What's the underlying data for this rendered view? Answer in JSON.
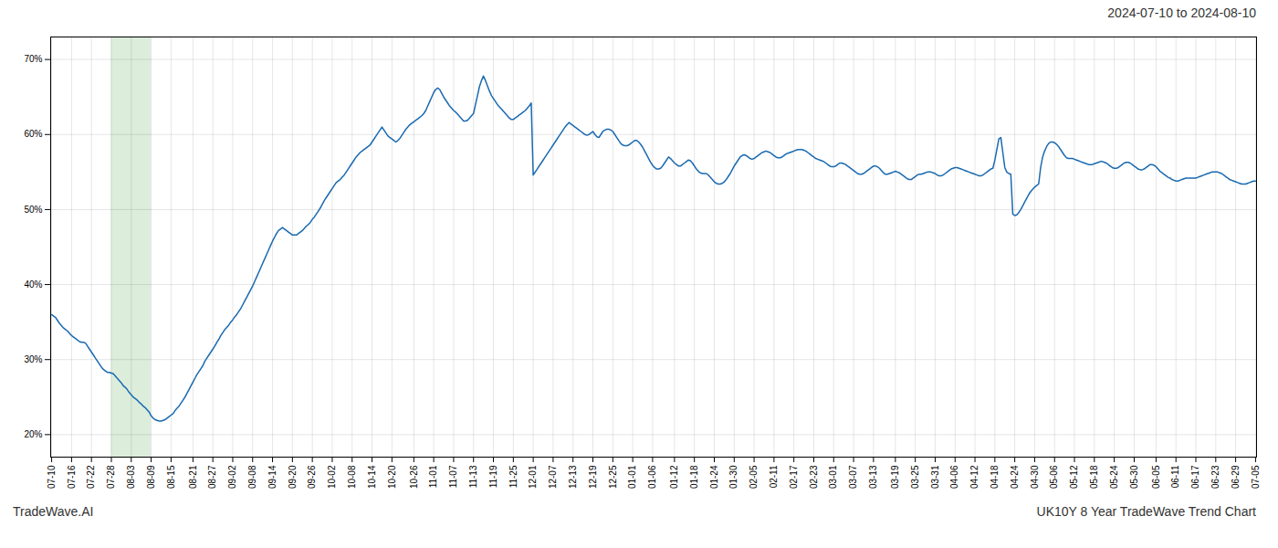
{
  "chart_data": {
    "type": "line",
    "title": "2024-07-10 to 2024-08-10",
    "annotations": [
      "TradeWave.AI",
      "UK10Y 8 Year TradeWave Trend Chart"
    ],
    "color": "#1a6ab0",
    "grid": true,
    "ylim": [
      0.17,
      0.73
    ],
    "yticks": [
      {
        "value": 0.2,
        "label": "20%"
      },
      {
        "value": 0.3,
        "label": "30%"
      },
      {
        "value": 0.4,
        "label": "40%"
      },
      {
        "value": 0.5,
        "label": "50%"
      },
      {
        "value": 0.6,
        "label": "60%"
      },
      {
        "value": 0.7,
        "label": "70%"
      }
    ],
    "shaded_region": {
      "from": "07-28",
      "to": "08-09",
      "color": "#d6ead6"
    },
    "categories": [
      "07-10",
      null,
      null,
      null,
      null,
      null,
      null,
      null,
      null,
      null,
      "07-16",
      null,
      null,
      null,
      null,
      null,
      null,
      null,
      null,
      null,
      "07-22",
      null,
      null,
      null,
      null,
      null,
      null,
      null,
      null,
      null,
      "07-28",
      null,
      null,
      null,
      null,
      null,
      null,
      null,
      null,
      null,
      "08-03",
      null,
      null,
      null,
      null,
      null,
      null,
      null,
      null,
      null,
      "08-09",
      null,
      null,
      null,
      null,
      null,
      null,
      null,
      null,
      null,
      "08-15",
      null,
      null,
      null,
      null,
      null,
      null,
      null,
      null,
      null,
      null,
      "08-21",
      null,
      null,
      null,
      null,
      null,
      null,
      null,
      null,
      null,
      "08-27",
      null,
      null,
      null,
      null,
      null,
      null,
      null,
      null,
      null,
      "09-02",
      null,
      null,
      null,
      null,
      null,
      null,
      null,
      null,
      null,
      "09-08",
      null,
      null,
      null,
      null,
      null,
      null,
      null,
      null,
      null,
      "09-14",
      null,
      null,
      null,
      null,
      null,
      null,
      null,
      null,
      null,
      "09-20",
      null,
      null,
      null,
      null,
      null,
      null,
      null,
      null,
      null,
      "09-26",
      null,
      null,
      null,
      null,
      null,
      null,
      null,
      null,
      null,
      "10-02",
      null,
      null,
      null,
      null,
      null,
      null,
      null,
      null,
      null,
      "10-08",
      null,
      null,
      null,
      null,
      null,
      null,
      null,
      null,
      null,
      "10-14",
      null,
      null,
      null,
      null,
      null,
      null,
      null,
      null,
      null,
      "10-20",
      null,
      null,
      null,
      null,
      null,
      null,
      null,
      null,
      null,
      null,
      "10-26",
      null,
      null,
      null,
      null,
      null,
      null,
      null,
      null,
      null,
      "11-01",
      null,
      null,
      null,
      null,
      null,
      null,
      null,
      null,
      null,
      "11-07",
      null,
      null,
      null,
      null,
      null,
      null,
      null,
      null,
      null,
      "11-13",
      null,
      null,
      null,
      null,
      null,
      null,
      null,
      null,
      null,
      "11-19",
      null,
      null,
      null,
      null,
      null,
      null,
      null,
      null,
      null,
      "11-25",
      null,
      null,
      null,
      null,
      null,
      null,
      null,
      null,
      null,
      "12-01",
      null,
      null,
      null,
      null,
      null,
      null,
      null,
      null,
      null,
      "12-07",
      null,
      null,
      null,
      null,
      null,
      null,
      null,
      null,
      null,
      "12-13",
      null,
      null,
      null,
      null,
      null,
      null,
      null,
      null,
      null,
      "12-19",
      null,
      null,
      null,
      null,
      null,
      null,
      null,
      null,
      null,
      "12-25",
      null,
      null,
      null,
      null,
      null,
      null,
      null,
      null,
      null,
      "01-01",
      null,
      null,
      null,
      null,
      null,
      null,
      null,
      null,
      null,
      "01-06",
      null,
      null,
      null,
      null,
      null,
      null,
      null,
      null,
      null,
      null,
      "01-12",
      null,
      null,
      null,
      null,
      null,
      null,
      null,
      null,
      null,
      "01-18",
      null,
      null,
      null,
      null,
      null,
      null,
      null,
      null,
      null,
      "01-24",
      null,
      null,
      null,
      null,
      null,
      null,
      null,
      null,
      null,
      "01-30",
      null,
      null,
      null,
      null,
      null,
      null,
      null,
      null,
      null,
      "02-05",
      null,
      null,
      null,
      null,
      null,
      null,
      null,
      null,
      null,
      "02-11",
      null,
      null,
      null,
      null,
      null,
      null,
      null,
      null,
      null,
      "02-17",
      null,
      null,
      null,
      null,
      null,
      null,
      null,
      null,
      null,
      "02-23",
      null,
      null,
      null,
      null,
      null,
      null,
      null,
      null,
      null,
      "03-01",
      null,
      null,
      null,
      null,
      null,
      null,
      null,
      null,
      null,
      "03-07",
      null,
      null,
      null,
      null,
      null,
      null,
      null,
      null,
      null,
      "03-13",
      null,
      null,
      null,
      null,
      null,
      null,
      null,
      null,
      null,
      null,
      "03-19",
      null,
      null,
      null,
      null,
      null,
      null,
      null,
      null,
      null,
      "03-25",
      null,
      null,
      null,
      null,
      null,
      null,
      null,
      null,
      null,
      "03-31",
      null,
      null,
      null,
      null,
      null,
      null,
      null,
      null,
      null,
      "04-06",
      null,
      null,
      null,
      null,
      null,
      null,
      null,
      null,
      null,
      "04-12",
      null,
      null,
      null,
      null,
      null,
      null,
      null,
      null,
      null,
      "04-18",
      null,
      null,
      null,
      null,
      null,
      null,
      null,
      null,
      null,
      "04-24",
      null,
      null,
      null,
      null,
      null,
      null,
      null,
      null,
      null,
      "04-30",
      null,
      null,
      null,
      null,
      null,
      null,
      null,
      null,
      null,
      "05-06",
      null,
      null,
      null,
      null,
      null,
      null,
      null,
      null,
      null,
      "05-12",
      null,
      null,
      null,
      null,
      null,
      null,
      null,
      null,
      null,
      "05-18",
      null,
      null,
      null,
      null,
      null,
      null,
      null,
      null,
      null,
      "05-24",
      null,
      null,
      null,
      null,
      null,
      null,
      null,
      null,
      null,
      "05-30",
      null,
      null,
      null,
      null,
      null,
      null,
      null,
      null,
      null,
      null,
      "06-05",
      null,
      null,
      null,
      null,
      null,
      null,
      null,
      null,
      null,
      "06-11",
      null,
      null,
      null,
      null,
      null,
      null,
      null,
      null,
      null,
      "06-17",
      null,
      null,
      null,
      null,
      null,
      null,
      null,
      null,
      null,
      "06-23",
      null,
      null,
      null,
      null,
      null,
      null,
      null,
      null,
      null,
      "06-29",
      null,
      null,
      null,
      null,
      null,
      null,
      null,
      null,
      null,
      "07-05"
    ],
    "values": [
      0.36,
      0.358,
      0.356,
      0.352,
      0.348,
      0.345,
      0.342,
      0.34,
      0.338,
      0.335,
      0.332,
      0.33,
      0.328,
      0.326,
      0.324,
      0.323,
      0.323,
      0.322,
      0.318,
      0.314,
      0.31,
      0.306,
      0.302,
      0.298,
      0.294,
      0.29,
      0.287,
      0.285,
      0.283,
      0.283,
      0.282,
      0.281,
      0.278,
      0.275,
      0.272,
      0.269,
      0.265,
      0.263,
      0.26,
      0.256,
      0.253,
      0.25,
      0.248,
      0.246,
      0.243,
      0.241,
      0.238,
      0.236,
      0.233,
      0.23,
      0.225,
      0.222,
      0.22,
      0.219,
      0.218,
      0.218,
      0.219,
      0.22,
      0.222,
      0.224,
      0.226,
      0.228,
      0.232,
      0.235,
      0.238,
      0.242,
      0.246,
      0.25,
      0.255,
      0.26,
      0.265,
      0.27,
      0.275,
      0.28,
      0.284,
      0.288,
      0.292,
      0.298,
      0.302,
      0.306,
      0.31,
      0.314,
      0.318,
      0.323,
      0.327,
      0.332,
      0.336,
      0.34,
      0.343,
      0.346,
      0.35,
      0.353,
      0.357,
      0.36,
      0.364,
      0.368,
      0.373,
      0.378,
      0.383,
      0.388,
      0.393,
      0.398,
      0.404,
      0.41,
      0.416,
      0.422,
      0.428,
      0.434,
      0.44,
      0.446,
      0.452,
      0.458,
      0.463,
      0.468,
      0.472,
      0.474,
      0.476,
      0.474,
      0.472,
      0.47,
      0.468,
      0.466,
      0.466,
      0.466,
      0.468,
      0.47,
      0.472,
      0.475,
      0.478,
      0.48,
      0.483,
      0.487,
      0.49,
      0.494,
      0.498,
      0.502,
      0.507,
      0.512,
      0.516,
      0.52,
      0.524,
      0.528,
      0.532,
      0.536,
      0.538,
      0.54,
      0.543,
      0.546,
      0.55,
      0.554,
      0.558,
      0.562,
      0.566,
      0.57,
      0.573,
      0.576,
      0.578,
      0.58,
      0.582,
      0.584,
      0.586,
      0.59,
      0.594,
      0.598,
      0.602,
      0.606,
      0.61,
      0.606,
      0.602,
      0.598,
      0.596,
      0.594,
      0.592,
      0.59,
      0.592,
      0.595,
      0.599,
      0.603,
      0.607,
      0.61,
      0.613,
      0.615,
      0.617,
      0.619,
      0.621,
      0.623,
      0.625,
      0.628,
      0.632,
      0.638,
      0.644,
      0.65,
      0.656,
      0.66,
      0.662,
      0.66,
      0.655,
      0.65,
      0.646,
      0.642,
      0.638,
      0.635,
      0.632,
      0.63,
      0.627,
      0.624,
      0.621,
      0.618,
      0.618,
      0.619,
      0.622,
      0.625,
      0.628,
      0.64,
      0.652,
      0.664,
      0.672,
      0.678,
      0.672,
      0.665,
      0.658,
      0.652,
      0.648,
      0.644,
      0.64,
      0.637,
      0.634,
      0.631,
      0.628,
      0.625,
      0.622,
      0.62,
      0.62,
      0.622,
      0.624,
      0.626,
      0.628,
      0.63,
      0.632,
      0.635,
      0.638,
      0.642,
      0.546,
      0.55,
      0.554,
      0.558,
      0.562,
      0.566,
      0.57,
      0.574,
      0.578,
      0.582,
      0.586,
      0.59,
      0.594,
      0.598,
      0.602,
      0.606,
      0.61,
      0.613,
      0.616,
      0.614,
      0.612,
      0.61,
      0.608,
      0.606,
      0.604,
      0.602,
      0.6,
      0.599,
      0.6,
      0.602,
      0.604,
      0.6,
      0.597,
      0.596,
      0.6,
      0.604,
      0.606,
      0.607,
      0.607,
      0.606,
      0.604,
      0.6,
      0.596,
      0.592,
      0.588,
      0.586,
      0.585,
      0.585,
      0.586,
      0.588,
      0.59,
      0.592,
      0.592,
      0.59,
      0.587,
      0.583,
      0.578,
      0.573,
      0.568,
      0.563,
      0.559,
      0.556,
      0.554,
      0.554,
      0.555,
      0.558,
      0.562,
      0.566,
      0.57,
      0.568,
      0.565,
      0.562,
      0.56,
      0.558,
      0.558,
      0.56,
      0.562,
      0.564,
      0.566,
      0.565,
      0.562,
      0.558,
      0.554,
      0.551,
      0.549,
      0.548,
      0.548,
      0.548,
      0.546,
      0.543,
      0.54,
      0.537,
      0.535,
      0.534,
      0.534,
      0.535,
      0.537,
      0.54,
      0.544,
      0.548,
      0.553,
      0.558,
      0.562,
      0.566,
      0.57,
      0.572,
      0.573,
      0.572,
      0.57,
      0.568,
      0.567,
      0.568,
      0.57,
      0.572,
      0.574,
      0.576,
      0.577,
      0.578,
      0.577,
      0.576,
      0.574,
      0.572,
      0.57,
      0.569,
      0.569,
      0.57,
      0.572,
      0.574,
      0.575,
      0.576,
      0.577,
      0.578,
      0.579,
      0.58,
      0.58,
      0.58,
      0.579,
      0.578,
      0.576,
      0.574,
      0.572,
      0.57,
      0.568,
      0.567,
      0.566,
      0.565,
      0.564,
      0.562,
      0.56,
      0.558,
      0.557,
      0.557,
      0.558,
      0.56,
      0.562,
      0.562,
      0.561,
      0.56,
      0.558,
      0.556,
      0.554,
      0.552,
      0.55,
      0.548,
      0.547,
      0.547,
      0.548,
      0.55,
      0.552,
      0.554,
      0.556,
      0.558,
      0.558,
      0.557,
      0.555,
      0.552,
      0.549,
      0.547,
      0.547,
      0.548,
      0.549,
      0.55,
      0.551,
      0.55,
      0.549,
      0.547,
      0.545,
      0.543,
      0.541,
      0.54,
      0.54,
      0.542,
      0.544,
      0.546,
      0.547,
      0.547,
      0.548,
      0.549,
      0.55,
      0.55,
      0.55,
      0.549,
      0.548,
      0.546,
      0.545,
      0.545,
      0.546,
      0.548,
      0.55,
      0.552,
      0.554,
      0.555,
      0.556,
      0.556,
      0.555,
      0.554,
      0.553,
      0.552,
      0.551,
      0.55,
      0.549,
      0.548,
      0.547,
      0.546,
      0.545,
      0.545,
      0.546,
      0.548,
      0.55,
      0.552,
      0.554,
      0.555,
      0.566,
      0.58,
      0.594,
      0.596,
      0.576,
      0.556,
      0.55,
      0.548,
      0.547,
      0.494,
      0.492,
      0.493,
      0.496,
      0.5,
      0.505,
      0.51,
      0.515,
      0.52,
      0.524,
      0.527,
      0.53,
      0.532,
      0.534,
      0.556,
      0.57,
      0.578,
      0.584,
      0.588,
      0.59,
      0.59,
      0.589,
      0.587,
      0.584,
      0.58,
      0.576,
      0.572,
      0.569,
      0.568,
      0.568,
      0.568,
      0.567,
      0.566,
      0.565,
      0.564,
      0.563,
      0.562,
      0.561,
      0.56,
      0.56,
      0.56,
      0.561,
      0.562,
      0.563,
      0.564,
      0.564,
      0.563,
      0.562,
      0.56,
      0.558,
      0.556,
      0.555,
      0.555,
      0.556,
      0.558,
      0.56,
      0.562,
      0.563,
      0.563,
      0.562,
      0.56,
      0.558,
      0.556,
      0.554,
      0.553,
      0.553,
      0.554,
      0.556,
      0.558,
      0.56,
      0.56,
      0.559,
      0.557,
      0.554,
      0.551,
      0.549,
      0.547,
      0.545,
      0.543,
      0.542,
      0.54,
      0.539,
      0.538,
      0.538,
      0.539,
      0.54,
      0.541,
      0.542,
      0.542,
      0.542,
      0.542,
      0.542,
      0.542,
      0.543,
      0.544,
      0.545,
      0.546,
      0.547,
      0.548,
      0.549,
      0.55,
      0.55,
      0.55,
      0.55,
      0.549,
      0.548,
      0.546,
      0.544,
      0.542,
      0.54,
      0.539,
      0.538,
      0.537,
      0.536,
      0.535,
      0.534,
      0.534,
      0.534,
      0.535,
      0.536,
      0.537,
      0.538,
      0.538
    ]
  }
}
